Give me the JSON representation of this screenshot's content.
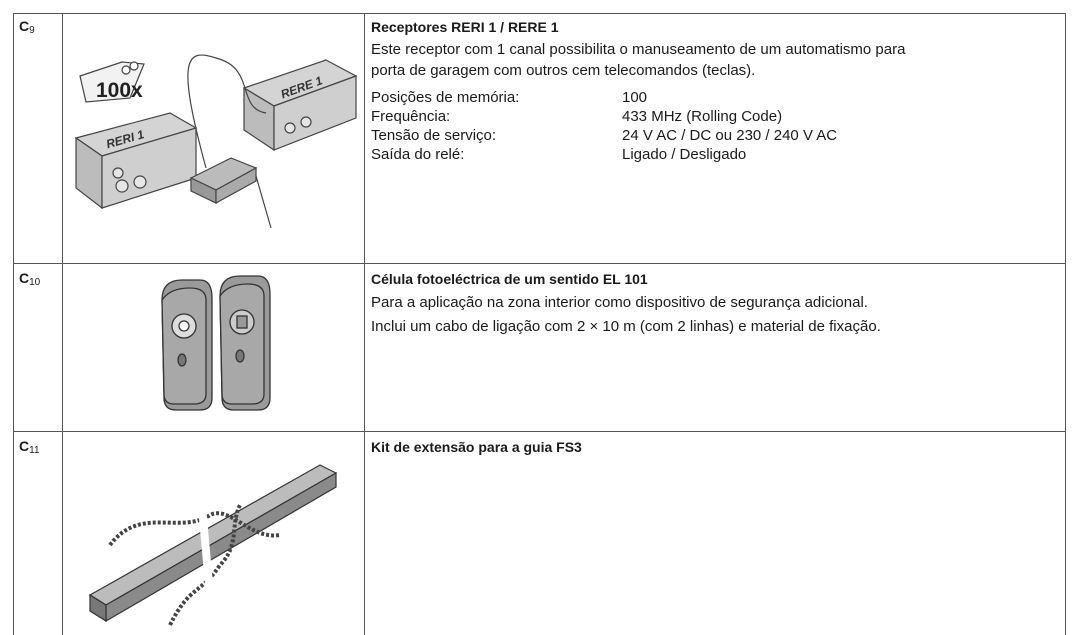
{
  "rows": [
    {
      "label": {
        "letter": "C",
        "sub": "9"
      },
      "image_texts": [
        "100x",
        "RERE 1",
        "RERI 1"
      ],
      "title": "Receptores RERI 1 / RERE 1",
      "paragraphs": [
        "Este receptor com 1 canal possibilita o manuseamento de um automatismo para",
        "porta de garagem com outros cem telecomandos (teclas)."
      ],
      "specs": [
        [
          "Posições de memória:",
          "100"
        ],
        [
          "Frequência:",
          "433 MHz (Rolling Code)"
        ],
        [
          "Tensão de serviço:",
          "24 V AC / DC ou 230 / 240 V AC"
        ],
        [
          "Saída do relé:",
          "Ligado / Desligado"
        ]
      ]
    },
    {
      "label": {
        "letter": "C",
        "sub": "10"
      },
      "title": "Célula fotoeléctrica de um sentido EL 101",
      "paragraphs": [
        "Para a aplicação na zona interior como dispositivo de segurança adicional.",
        "Inclui um cabo de ligação com 2 × 10 m (com 2 linhas) e material de fixação."
      ]
    },
    {
      "label": {
        "letter": "C",
        "sub": "11"
      },
      "title": "Kit de extensão para a guia FS3"
    }
  ]
}
